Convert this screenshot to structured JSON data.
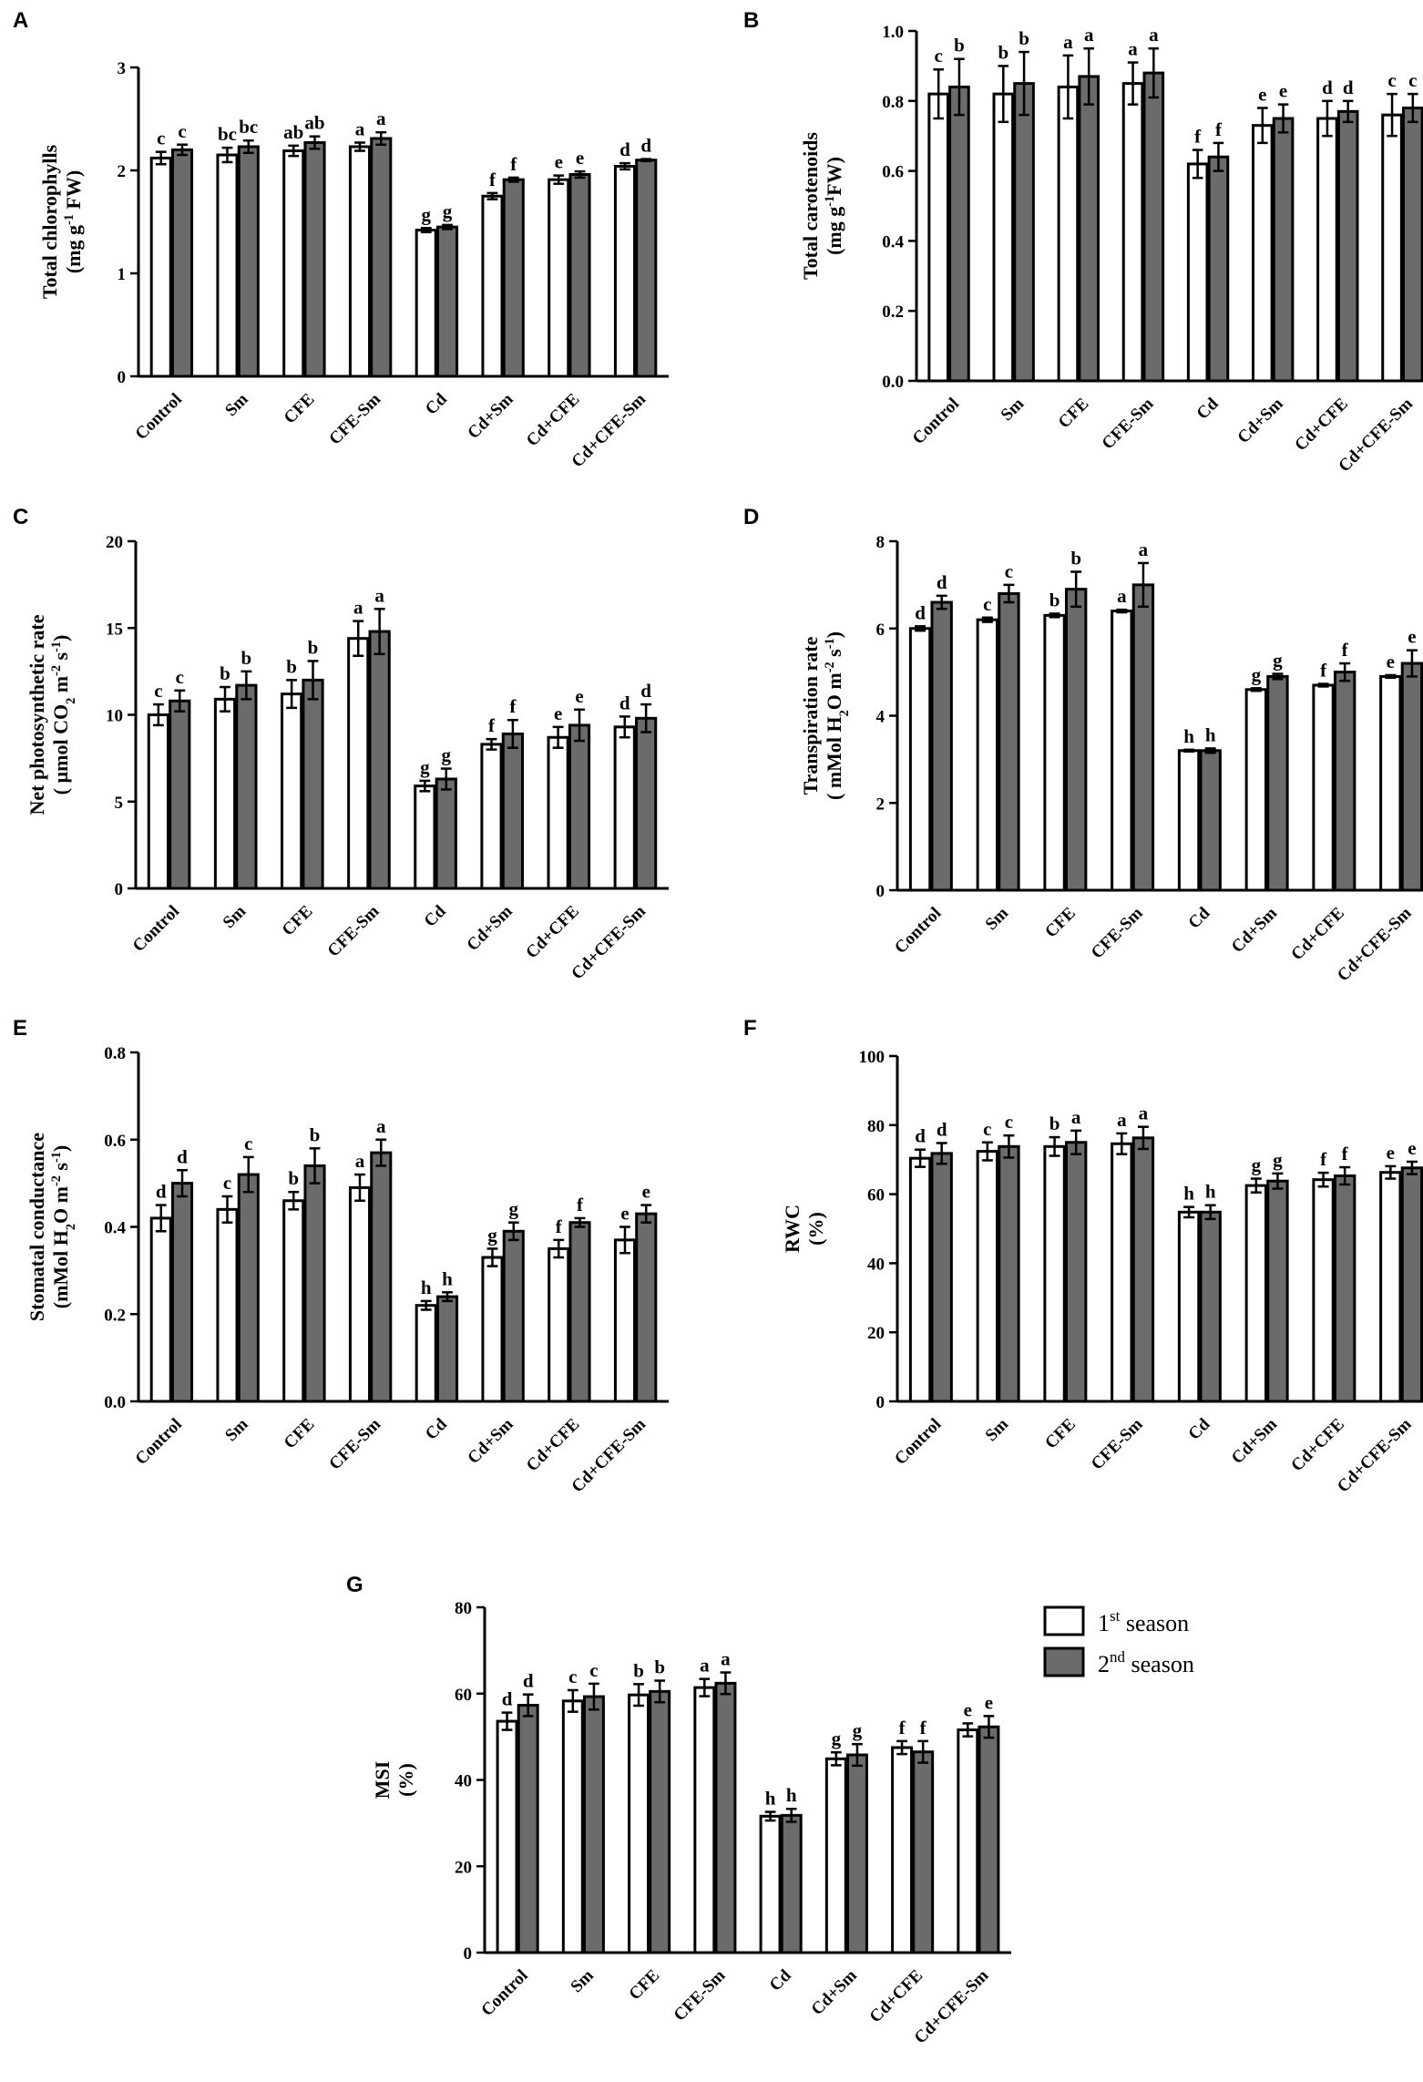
{
  "chart_data": [
    {
      "panel": "A",
      "type": "bar",
      "ylabel_lines": [
        "Total chlorophylls",
        "(mg g⁻¹ FW)"
      ],
      "ylim": [
        0,
        3
      ],
      "yticks": [
        "0",
        "1",
        "2",
        "3"
      ],
      "ytick_values": [
        0,
        1,
        2,
        3
      ],
      "categories": [
        "Control",
        "Sm",
        "CFE",
        "CFE-Sm",
        "Cd",
        "Cd+Sm",
        "Cd+CFE",
        "Cd+CFE-Sm"
      ],
      "series": [
        {
          "name": "1st season",
          "values": [
            2.12,
            2.15,
            2.19,
            2.23,
            1.42,
            1.75,
            1.91,
            2.04
          ],
          "errors": [
            0.06,
            0.07,
            0.05,
            0.04,
            0.02,
            0.03,
            0.04,
            0.03
          ],
          "letters": [
            "c",
            "bc",
            "ab",
            "a",
            "g",
            "f",
            "e",
            "d"
          ]
        },
        {
          "name": "2nd season",
          "values": [
            2.2,
            2.23,
            2.27,
            2.31,
            1.45,
            1.91,
            1.96,
            2.1
          ],
          "errors": [
            0.05,
            0.06,
            0.06,
            0.06,
            0.02,
            0.02,
            0.03,
            0.01
          ],
          "letters": [
            "c",
            "bc",
            "ab",
            "a",
            "g",
            "f",
            "e",
            "d"
          ]
        }
      ]
    },
    {
      "panel": "B",
      "type": "bar",
      "ylabel_lines": [
        "Total carotenoids",
        "(mg g⁻¹FW)"
      ],
      "ylim": [
        0,
        1
      ],
      "yticks": [
        "0.0",
        "0.2",
        "0.4",
        "0.6",
        "0.8",
        "1.0"
      ],
      "ytick_values": [
        0,
        0.2,
        0.4,
        0.6,
        0.8,
        1.0
      ],
      "categories": [
        "Control",
        "Sm",
        "CFE",
        "CFE-Sm",
        "Cd",
        "Cd+Sm",
        "Cd+CFE",
        "Cd+CFE-Sm"
      ],
      "series": [
        {
          "name": "1st season",
          "values": [
            0.82,
            0.82,
            0.84,
            0.85,
            0.62,
            0.73,
            0.75,
            0.76
          ],
          "errors": [
            0.07,
            0.08,
            0.09,
            0.06,
            0.04,
            0.05,
            0.05,
            0.06
          ],
          "letters": [
            "c",
            "b",
            "a",
            "a",
            "f",
            "e",
            "d",
            "c"
          ]
        },
        {
          "name": "2nd season",
          "values": [
            0.84,
            0.85,
            0.87,
            0.88,
            0.64,
            0.75,
            0.77,
            0.78
          ],
          "errors": [
            0.08,
            0.09,
            0.08,
            0.07,
            0.04,
            0.04,
            0.03,
            0.04
          ],
          "letters": [
            "b",
            "b",
            "a",
            "a",
            "f",
            "e",
            "d",
            "c"
          ]
        }
      ]
    },
    {
      "panel": "C",
      "type": "bar",
      "ylabel_lines": [
        "Net photosynthetic rate",
        "( µmol CO₂ m⁻² s⁻¹)"
      ],
      "ylim": [
        0,
        20
      ],
      "yticks": [
        "0",
        "5",
        "10",
        "15",
        "20"
      ],
      "ytick_values": [
        0,
        5,
        10,
        15,
        20
      ],
      "categories": [
        "Control",
        "Sm",
        "CFE",
        "CFE-Sm",
        "Cd",
        "Cd+Sm",
        "Cd+CFE",
        "Cd+CFE-Sm"
      ],
      "series": [
        {
          "name": "1st season",
          "values": [
            10.0,
            10.9,
            11.2,
            14.4,
            5.9,
            8.3,
            8.7,
            9.3
          ],
          "errors": [
            0.6,
            0.7,
            0.8,
            1.0,
            0.3,
            0.3,
            0.6,
            0.6
          ],
          "letters": [
            "c",
            "b",
            "b",
            "a",
            "g",
            "f",
            "e",
            "d"
          ]
        },
        {
          "name": "2nd season",
          "values": [
            10.8,
            11.7,
            12.0,
            14.8,
            6.3,
            8.9,
            9.4,
            9.8
          ],
          "errors": [
            0.6,
            0.8,
            1.1,
            1.3,
            0.6,
            0.8,
            0.9,
            0.8
          ],
          "letters": [
            "c",
            "b",
            "b",
            "a",
            "g",
            "f",
            "e",
            "d"
          ]
        }
      ]
    },
    {
      "panel": "D",
      "type": "bar",
      "ylabel_lines": [
        "Transpiration rate",
        "( mMol H₂O m⁻² s⁻¹)"
      ],
      "ylim": [
        0,
        8
      ],
      "yticks": [
        "0",
        "2",
        "4",
        "6",
        "8"
      ],
      "ytick_values": [
        0,
        2,
        4,
        6,
        8
      ],
      "categories": [
        "Control",
        "Sm",
        "CFE",
        "CFE-Sm",
        "Cd",
        "Cd+Sm",
        "Cd+CFE",
        "Cd+CFE-Sm"
      ],
      "series": [
        {
          "name": "1st season",
          "values": [
            6.0,
            6.2,
            6.3,
            6.4,
            3.2,
            4.6,
            4.7,
            4.9
          ],
          "errors": [
            0.05,
            0.05,
            0.04,
            0.03,
            0.02,
            0.03,
            0.03,
            0.03
          ],
          "letters": [
            "d",
            "c",
            "b",
            "a",
            "h",
            "g",
            "f",
            "e"
          ]
        },
        {
          "name": "2nd season",
          "values": [
            6.6,
            6.8,
            6.9,
            7.0,
            3.2,
            4.9,
            5.0,
            5.2
          ],
          "errors": [
            0.15,
            0.2,
            0.4,
            0.5,
            0.05,
            0.06,
            0.2,
            0.3
          ],
          "letters": [
            "d",
            "c",
            "b",
            "a",
            "h",
            "g",
            "f",
            "e"
          ]
        }
      ]
    },
    {
      "panel": "E",
      "type": "bar",
      "ylabel_lines": [
        "Stomatal conductance",
        "(mMol H₂O m⁻² s⁻¹)"
      ],
      "ylim": [
        0,
        0.8
      ],
      "yticks": [
        "0.0",
        "0.2",
        "0.4",
        "0.6",
        "0.8"
      ],
      "ytick_values": [
        0,
        0.2,
        0.4,
        0.6,
        0.8
      ],
      "categories": [
        "Control",
        "Sm",
        "CFE",
        "CFE-Sm",
        "Cd",
        "Cd+Sm",
        "Cd+CFE",
        "Cd+CFE-Sm"
      ],
      "series": [
        {
          "name": "1st season",
          "values": [
            0.42,
            0.44,
            0.46,
            0.49,
            0.22,
            0.33,
            0.35,
            0.37
          ],
          "errors": [
            0.03,
            0.03,
            0.02,
            0.03,
            0.01,
            0.02,
            0.02,
            0.03
          ],
          "letters": [
            "d",
            "c",
            "b",
            "a",
            "h",
            "g",
            "f",
            "e"
          ]
        },
        {
          "name": "2nd season",
          "values": [
            0.5,
            0.52,
            0.54,
            0.57,
            0.24,
            0.39,
            0.41,
            0.43
          ],
          "errors": [
            0.03,
            0.04,
            0.04,
            0.03,
            0.01,
            0.02,
            0.01,
            0.02
          ],
          "letters": [
            "d",
            "c",
            "b",
            "a",
            "h",
            "g",
            "f",
            "e"
          ]
        }
      ]
    },
    {
      "panel": "F",
      "type": "bar",
      "ylabel_lines": [
        "RWC",
        "(%)"
      ],
      "ylim": [
        0,
        100
      ],
      "yticks": [
        "0",
        "20",
        "40",
        "60",
        "80",
        "100"
      ],
      "ytick_values": [
        0,
        20,
        40,
        60,
        80,
        100
      ],
      "categories": [
        "Control",
        "Sm",
        "CFE",
        "CFE-Sm",
        "Cd",
        "Cd+Sm",
        "Cd+CFE",
        "Cd+CFE-Sm"
      ],
      "series": [
        {
          "name": "1st season",
          "values": [
            70.4,
            72.4,
            73.8,
            74.6,
            54.8,
            62.5,
            64.2,
            66.3
          ],
          "errors": [
            2.5,
            2.6,
            2.7,
            3.0,
            1.5,
            2.0,
            2.0,
            1.8
          ],
          "letters": [
            "d",
            "c",
            "b",
            "a",
            "h",
            "g",
            "f",
            "e"
          ]
        },
        {
          "name": "2nd season",
          "values": [
            71.8,
            73.8,
            75.0,
            76.3,
            54.8,
            63.8,
            65.3,
            67.6
          ],
          "errors": [
            3.0,
            3.2,
            3.4,
            3.2,
            2.0,
            2.2,
            2.5,
            1.8
          ],
          "letters": [
            "d",
            "c",
            "a",
            "a",
            "h",
            "g",
            "f",
            "e"
          ]
        }
      ]
    },
    {
      "panel": "G",
      "type": "bar",
      "ylabel_lines": [
        "MSI",
        "(%)"
      ],
      "ylim": [
        0,
        80
      ],
      "yticks": [
        "0",
        "20",
        "40",
        "60",
        "80"
      ],
      "ytick_values": [
        0,
        20,
        40,
        60,
        80
      ],
      "categories": [
        "Control",
        "Sm",
        "CFE",
        "CFE-Sm",
        "Cd",
        "Cd+Sm",
        "Cd+CFE",
        "Cd+CFE-Sm"
      ],
      "series": [
        {
          "name": "1st season",
          "values": [
            53.6,
            58.3,
            59.7,
            61.4,
            31.6,
            44.9,
            47.5,
            51.6
          ],
          "errors": [
            2.0,
            2.5,
            2.5,
            2.0,
            1.0,
            1.5,
            1.5,
            1.5
          ],
          "letters": [
            "d",
            "c",
            "b",
            "a",
            "h",
            "g",
            "f",
            "e"
          ]
        },
        {
          "name": "2nd season",
          "values": [
            57.3,
            59.3,
            60.5,
            62.4,
            31.8,
            45.8,
            46.5,
            52.3
          ],
          "errors": [
            2.5,
            3.0,
            2.5,
            2.5,
            1.5,
            2.5,
            2.5,
            2.5
          ],
          "letters": [
            "d",
            "c",
            "b",
            "a",
            "h",
            "g",
            "f",
            "e"
          ]
        }
      ]
    }
  ],
  "legend": {
    "items": [
      {
        "base": "1",
        "sup": "st",
        "text": " season",
        "fill": "#ffffff"
      },
      {
        "base": "2",
        "sup": "nd",
        "text": " season",
        "fill": "#6b6b6b"
      }
    ]
  },
  "colors": {
    "season1": "#ffffff",
    "season2": "#6b6b6b",
    "axis": "#000000"
  }
}
